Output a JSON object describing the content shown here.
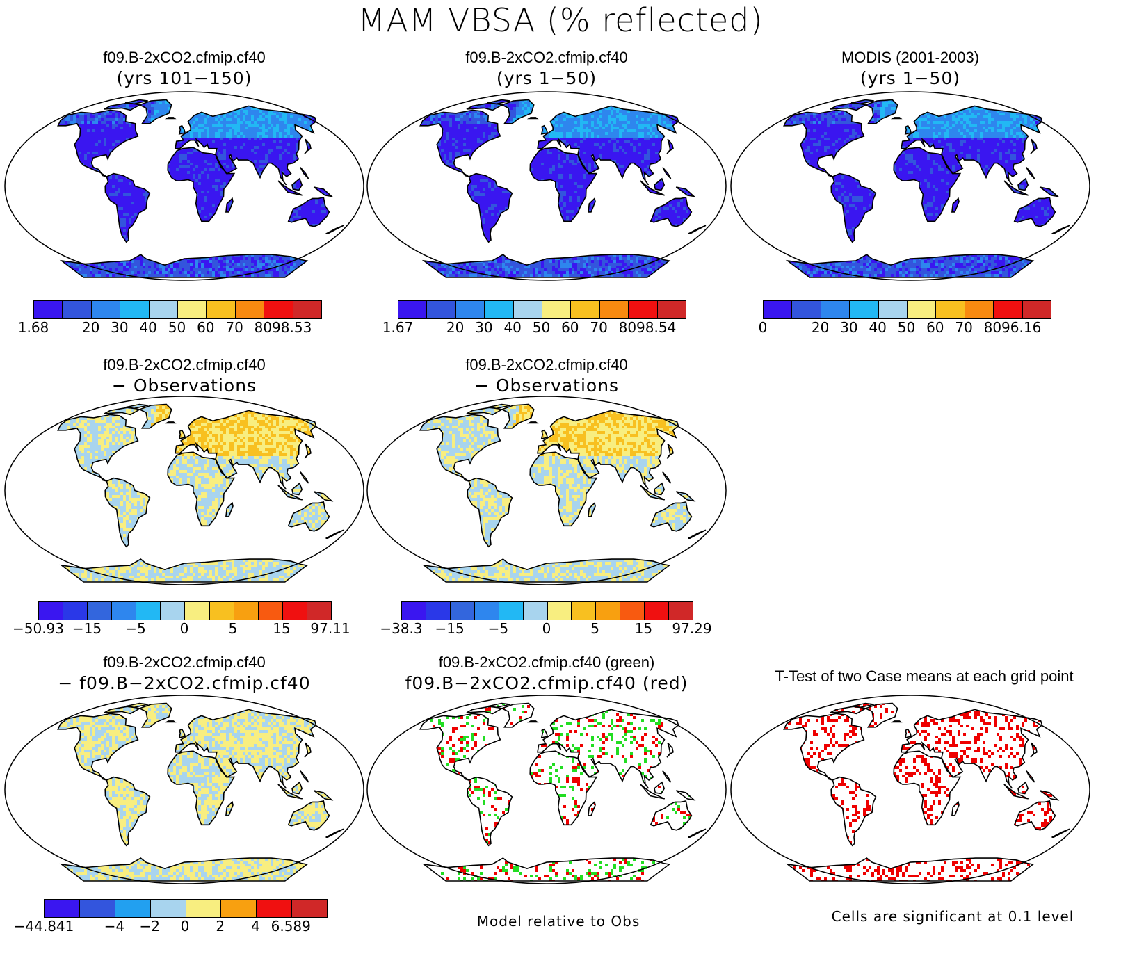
{
  "title": "MAM VBSA (% reflected)",
  "panels": [
    {
      "line1": "f09.B-2xCO2.cfmip.cf40",
      "line2": "(yrs 101−150)",
      "scheme": "abs"
    },
    {
      "line1": "f09.B-2xCO2.cfmip.cf40",
      "line2": "(yrs 1−50)",
      "scheme": "abs"
    },
    {
      "line1": "MODIS (2001-2003)",
      "line2": "(yrs 1−50)",
      "scheme": "abs"
    },
    {
      "line1": "f09.B-2xCO2.cfmip.cf40",
      "line2": "− Observations",
      "scheme": "diff"
    },
    {
      "line1": "f09.B-2xCO2.cfmip.cf40",
      "line2": "− Observations",
      "scheme": "diff"
    },
    {
      "line1": "f09.B-2xCO2.cfmip.cf40",
      "line2": "− f09.B−2xCO2.cfmip.cf40",
      "scheme": "mdiff"
    },
    {
      "line1": "f09.B-2xCO2.cfmip.cf40 (green)",
      "line2": "f09.B−2xCO2.cfmip.cf40 (red)",
      "scheme": "relobs"
    },
    {
      "line1": "T-Test of two Case means at each grid point",
      "line2": "",
      "scheme": "ttest"
    }
  ],
  "colorbars": [
    {
      "colors": [
        "#3a16f0",
        "#3355dd",
        "#2e86ee",
        "#22b8f4",
        "#a8d4ee",
        "#f8ee80",
        "#f8c020",
        "#f88a10",
        "#f01010",
        "#d02828"
      ],
      "labels": [
        "1.68",
        "20",
        "30",
        "40",
        "50",
        "60",
        "70",
        "80",
        "98.53"
      ]
    },
    {
      "colors": [
        "#3a16f0",
        "#3355dd",
        "#2e86ee",
        "#22b8f4",
        "#a8d4ee",
        "#f8ee80",
        "#f8c020",
        "#f88a10",
        "#f01010",
        "#d02828"
      ],
      "labels": [
        "1.67",
        "20",
        "30",
        "40",
        "50",
        "60",
        "70",
        "80",
        "98.54"
      ]
    },
    {
      "colors": [
        "#3a16f0",
        "#3355dd",
        "#2e86ee",
        "#22b8f4",
        "#a8d4ee",
        "#f8ee80",
        "#f8c020",
        "#f88a10",
        "#f01010",
        "#d02828"
      ],
      "labels": [
        "0",
        "20",
        "30",
        "40",
        "50",
        "60",
        "70",
        "80",
        "96.16"
      ]
    },
    {
      "colors": [
        "#3a16f0",
        "#2a38e8",
        "#3366dd",
        "#2e86ee",
        "#22b8f4",
        "#a8d4ee",
        "#f8ee80",
        "#f8c020",
        "#f8a010",
        "#f85a10",
        "#f01010",
        "#d02828"
      ],
      "labels": [
        "−50.93",
        "−15",
        "−5",
        "0",
        "5",
        "15",
        "97.11"
      ]
    },
    {
      "colors": [
        "#3a16f0",
        "#2a38e8",
        "#3366dd",
        "#2e86ee",
        "#22b8f4",
        "#a8d4ee",
        "#f8ee80",
        "#f8c020",
        "#f8a010",
        "#f85a10",
        "#f01010",
        "#d02828"
      ],
      "labels": [
        "−38.3",
        "−15",
        "−5",
        "0",
        "5",
        "15",
        "97.29"
      ]
    },
    {
      "colors": [
        "#3a16f0",
        "#3355dd",
        "#22a0f0",
        "#a8d4ee",
        "#f8ee80",
        "#f8a010",
        "#f01010",
        "#d02828"
      ],
      "labels": [
        "−44.841",
        "−4",
        "−2",
        "0",
        "2",
        "4",
        "6.589"
      ]
    }
  ],
  "footers": {
    "rel_obs": "Model relative to Obs",
    "ttest": "Cells are significant at 0.1 level"
  }
}
